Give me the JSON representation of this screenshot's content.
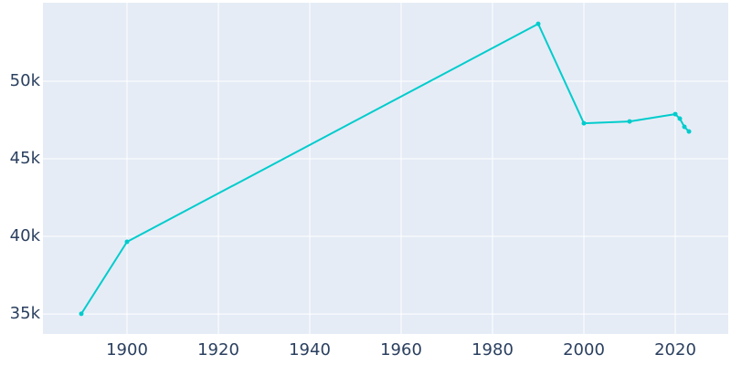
{
  "chart_data": {
    "type": "line",
    "x": [
      1890,
      1900,
      1990,
      2000,
      2010,
      2020,
      2021,
      2022,
      2023
    ],
    "series": [
      {
        "color": "#00cccc",
        "values": [
          35010,
          39650,
          53700,
          47290,
          47410,
          47880,
          47590,
          47060,
          46760
        ]
      }
    ],
    "xlim": [
      1881.6,
      2031.6
    ],
    "xticks": [
      1900,
      1920,
      1940,
      1960,
      1980,
      2000,
      2020
    ],
    "ylim": [
      33710,
      55060
    ],
    "yticks": [
      {
        "value": 35000,
        "label": "35k"
      },
      {
        "value": 40000,
        "label": "40k"
      },
      {
        "value": 45000,
        "label": "45k"
      },
      {
        "value": 50000,
        "label": "50k"
      }
    ],
    "grid": true
  }
}
